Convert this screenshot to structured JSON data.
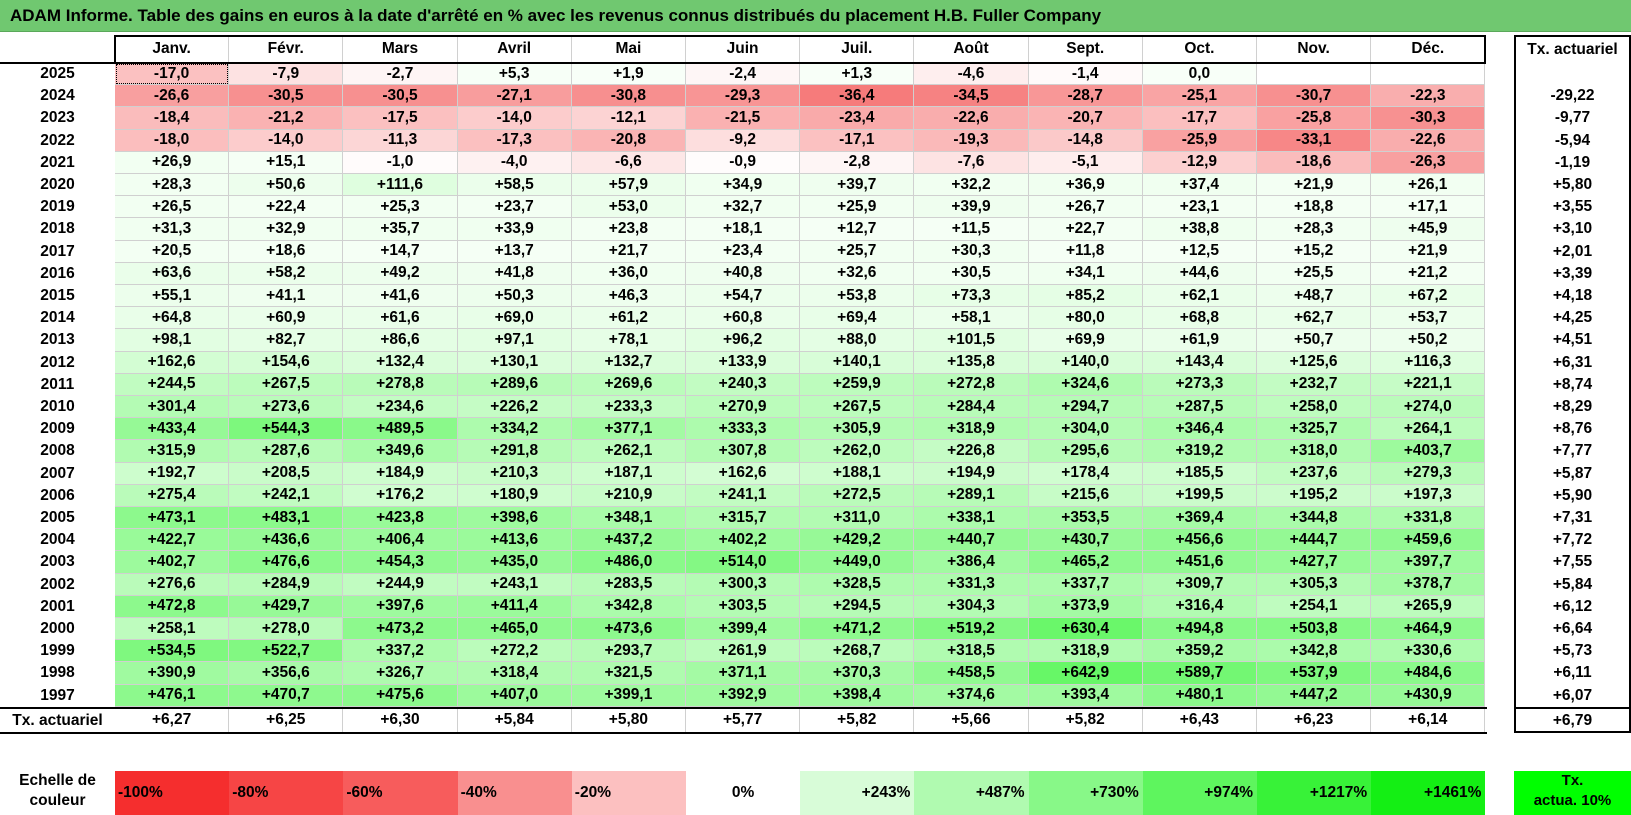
{
  "title": "ADAM Informe. Table des gains en euros à la date d'arrêté en % avec les revenus connus distribués du placement H.B. Fuller Company",
  "months": [
    "Janv.",
    "Févr.",
    "Mars",
    "Avril",
    "Mai",
    "Juin",
    "Juil.",
    "Août",
    "Sept.",
    "Oct.",
    "Nov.",
    "Déc."
  ],
  "tx_header": "Tx. actuariel",
  "rows": [
    {
      "year": "2025",
      "values": [
        "-17,0",
        "-7,9",
        "-2,7",
        "+5,3",
        "+1,9",
        "-2,4",
        "+1,3",
        "-4,6",
        "-1,4",
        "0,0",
        "",
        ""
      ],
      "tx": ""
    },
    {
      "year": "2024",
      "values": [
        "-26,6",
        "-30,5",
        "-30,5",
        "-27,1",
        "-30,8",
        "-29,3",
        "-36,4",
        "-34,5",
        "-28,7",
        "-25,1",
        "-30,7",
        "-22,3"
      ],
      "tx": "-29,22"
    },
    {
      "year": "2023",
      "values": [
        "-18,4",
        "-21,2",
        "-17,5",
        "-14,0",
        "-12,1",
        "-21,5",
        "-23,4",
        "-22,6",
        "-20,7",
        "-17,7",
        "-25,8",
        "-30,3"
      ],
      "tx": "-9,77"
    },
    {
      "year": "2022",
      "values": [
        "-18,0",
        "-14,0",
        "-11,3",
        "-17,3",
        "-20,8",
        "-9,2",
        "-17,1",
        "-19,3",
        "-14,8",
        "-25,9",
        "-33,1",
        "-22,6"
      ],
      "tx": "-5,94"
    },
    {
      "year": "2021",
      "values": [
        "+26,9",
        "+15,1",
        "-1,0",
        "-4,0",
        "-6,6",
        "-0,9",
        "-2,8",
        "-7,6",
        "-5,1",
        "-12,9",
        "-18,6",
        "-26,3"
      ],
      "tx": "-1,19"
    },
    {
      "year": "2020",
      "values": [
        "+28,3",
        "+50,6",
        "+111,6",
        "+58,5",
        "+57,9",
        "+34,9",
        "+39,7",
        "+32,2",
        "+36,9",
        "+37,4",
        "+21,9",
        "+26,1"
      ],
      "tx": "+5,80"
    },
    {
      "year": "2019",
      "values": [
        "+26,5",
        "+22,4",
        "+25,3",
        "+23,7",
        "+53,0",
        "+32,7",
        "+25,9",
        "+39,9",
        "+26,7",
        "+23,1",
        "+18,8",
        "+17,1"
      ],
      "tx": "+3,55"
    },
    {
      "year": "2018",
      "values": [
        "+31,3",
        "+32,9",
        "+35,7",
        "+33,9",
        "+23,8",
        "+18,1",
        "+12,7",
        "+11,5",
        "+22,7",
        "+38,8",
        "+28,3",
        "+45,9"
      ],
      "tx": "+3,10"
    },
    {
      "year": "2017",
      "values": [
        "+20,5",
        "+18,6",
        "+14,7",
        "+13,7",
        "+21,7",
        "+23,4",
        "+25,7",
        "+30,3",
        "+11,8",
        "+12,5",
        "+15,2",
        "+21,9"
      ],
      "tx": "+2,01"
    },
    {
      "year": "2016",
      "values": [
        "+63,6",
        "+58,2",
        "+49,2",
        "+41,8",
        "+36,0",
        "+40,8",
        "+32,6",
        "+30,5",
        "+34,1",
        "+44,6",
        "+25,5",
        "+21,2"
      ],
      "tx": "+3,39"
    },
    {
      "year": "2015",
      "values": [
        "+55,1",
        "+41,1",
        "+41,6",
        "+50,3",
        "+46,3",
        "+54,7",
        "+53,8",
        "+73,3",
        "+85,2",
        "+62,1",
        "+48,7",
        "+67,2"
      ],
      "tx": "+4,18"
    },
    {
      "year": "2014",
      "values": [
        "+64,8",
        "+60,9",
        "+61,6",
        "+69,0",
        "+61,2",
        "+60,8",
        "+69,4",
        "+58,1",
        "+80,0",
        "+68,8",
        "+62,7",
        "+53,7"
      ],
      "tx": "+4,25"
    },
    {
      "year": "2013",
      "values": [
        "+98,1",
        "+82,7",
        "+86,6",
        "+97,1",
        "+78,1",
        "+96,2",
        "+88,0",
        "+101,5",
        "+69,9",
        "+61,9",
        "+50,7",
        "+50,2"
      ],
      "tx": "+4,51"
    },
    {
      "year": "2012",
      "values": [
        "+162,6",
        "+154,6",
        "+132,4",
        "+130,1",
        "+132,7",
        "+133,9",
        "+140,1",
        "+135,8",
        "+140,0",
        "+143,4",
        "+125,6",
        "+116,3"
      ],
      "tx": "+6,31"
    },
    {
      "year": "2011",
      "values": [
        "+244,5",
        "+267,5",
        "+278,8",
        "+289,6",
        "+269,6",
        "+240,3",
        "+259,9",
        "+272,8",
        "+324,6",
        "+273,3",
        "+232,7",
        "+221,1"
      ],
      "tx": "+8,74"
    },
    {
      "year": "2010",
      "values": [
        "+301,4",
        "+273,6",
        "+234,6",
        "+226,2",
        "+233,3",
        "+270,9",
        "+267,5",
        "+284,4",
        "+294,7",
        "+287,5",
        "+258,0",
        "+274,0"
      ],
      "tx": "+8,29"
    },
    {
      "year": "2009",
      "values": [
        "+433,4",
        "+544,3",
        "+489,5",
        "+334,2",
        "+377,1",
        "+333,3",
        "+305,9",
        "+318,9",
        "+304,0",
        "+346,4",
        "+325,7",
        "+264,1"
      ],
      "tx": "+8,76"
    },
    {
      "year": "2008",
      "values": [
        "+315,9",
        "+287,6",
        "+349,6",
        "+291,8",
        "+262,1",
        "+307,8",
        "+262,0",
        "+226,8",
        "+295,6",
        "+319,2",
        "+318,0",
        "+403,7"
      ],
      "tx": "+7,77"
    },
    {
      "year": "2007",
      "values": [
        "+192,7",
        "+208,5",
        "+184,9",
        "+210,3",
        "+187,1",
        "+162,6",
        "+188,1",
        "+194,9",
        "+178,4",
        "+185,5",
        "+237,6",
        "+279,3"
      ],
      "tx": "+5,87"
    },
    {
      "year": "2006",
      "values": [
        "+275,4",
        "+242,1",
        "+176,2",
        "+180,9",
        "+210,9",
        "+241,1",
        "+272,5",
        "+289,1",
        "+215,6",
        "+199,5",
        "+195,2",
        "+197,3"
      ],
      "tx": "+5,90"
    },
    {
      "year": "2005",
      "values": [
        "+473,1",
        "+483,1",
        "+423,8",
        "+398,6",
        "+348,1",
        "+315,7",
        "+311,0",
        "+338,1",
        "+353,5",
        "+369,4",
        "+344,8",
        "+331,8"
      ],
      "tx": "+7,31"
    },
    {
      "year": "2004",
      "values": [
        "+422,7",
        "+436,6",
        "+406,4",
        "+413,6",
        "+437,2",
        "+402,2",
        "+429,2",
        "+440,7",
        "+430,7",
        "+456,6",
        "+444,7",
        "+459,6"
      ],
      "tx": "+7,72"
    },
    {
      "year": "2003",
      "values": [
        "+402,7",
        "+476,6",
        "+454,3",
        "+435,0",
        "+486,0",
        "+514,0",
        "+449,0",
        "+386,4",
        "+465,2",
        "+451,6",
        "+427,7",
        "+397,7"
      ],
      "tx": "+7,55"
    },
    {
      "year": "2002",
      "values": [
        "+276,6",
        "+284,9",
        "+244,9",
        "+243,1",
        "+283,5",
        "+300,3",
        "+328,5",
        "+331,3",
        "+337,7",
        "+309,7",
        "+305,3",
        "+378,7"
      ],
      "tx": "+5,84"
    },
    {
      "year": "2001",
      "values": [
        "+472,8",
        "+429,7",
        "+397,6",
        "+411,4",
        "+342,8",
        "+303,5",
        "+294,5",
        "+304,3",
        "+373,9",
        "+316,4",
        "+254,1",
        "+265,9"
      ],
      "tx": "+6,12"
    },
    {
      "year": "2000",
      "values": [
        "+258,1",
        "+278,0",
        "+473,2",
        "+465,0",
        "+473,6",
        "+399,4",
        "+471,2",
        "+519,2",
        "+630,4",
        "+494,8",
        "+503,8",
        "+464,9"
      ],
      "tx": "+6,64"
    },
    {
      "year": "1999",
      "values": [
        "+534,5",
        "+522,7",
        "+337,2",
        "+272,2",
        "+293,7",
        "+261,9",
        "+268,7",
        "+318,5",
        "+318,9",
        "+359,2",
        "+342,8",
        "+330,6"
      ],
      "tx": "+5,73"
    },
    {
      "year": "1998",
      "values": [
        "+390,9",
        "+356,6",
        "+326,7",
        "+318,4",
        "+321,5",
        "+371,1",
        "+370,3",
        "+458,5",
        "+642,9",
        "+589,7",
        "+537,9",
        "+484,6"
      ],
      "tx": "+6,11"
    },
    {
      "year": "1997",
      "values": [
        "+476,1",
        "+470,7",
        "+475,6",
        "+407,0",
        "+399,1",
        "+392,9",
        "+398,4",
        "+374,6",
        "+393,4",
        "+480,1",
        "+447,2",
        "+430,9"
      ],
      "tx": "+6,07"
    }
  ],
  "footer": {
    "label": "Tx. actuariel",
    "values": [
      "+6,27",
      "+6,25",
      "+6,30",
      "+5,84",
      "+5,80",
      "+5,77",
      "+5,82",
      "+5,66",
      "+5,82",
      "+6,43",
      "+6,23",
      "+6,14"
    ],
    "total": "+6,79"
  },
  "scale": {
    "label_line1": "Echelle de",
    "label_line2": "couleur",
    "steps": [
      {
        "text": "-100%",
        "color": "#f52e2e",
        "align": "left"
      },
      {
        "text": "-80%",
        "color": "#f64545",
        "align": "left"
      },
      {
        "text": "-60%",
        "color": "#f75c5c",
        "align": "left"
      },
      {
        "text": "-40%",
        "color": "#f98f8f",
        "align": "left"
      },
      {
        "text": "-20%",
        "color": "#fcc0c0",
        "align": "left"
      },
      {
        "text": "0%",
        "color": "#ffffff",
        "align": "center"
      },
      {
        "text": "+243%",
        "color": "#d8fcd8",
        "align": "right"
      },
      {
        "text": "+487%",
        "color": "#b0fab0",
        "align": "right"
      },
      {
        "text": "+730%",
        "color": "#88f888",
        "align": "right"
      },
      {
        "text": "+974%",
        "color": "#5ef55e",
        "align": "right"
      },
      {
        "text": "+1217%",
        "color": "#38f238",
        "align": "right"
      },
      {
        "text": "+1461%",
        "color": "#14ef14",
        "align": "right"
      }
    ],
    "act_line1": "Tx.",
    "act_line2": "actua. 10%",
    "act_color": "#00ff00"
  },
  "colors": {
    "title_bg": "#70c870",
    "negative_max": "#f52e2e",
    "positive_max": "#14ef14"
  }
}
